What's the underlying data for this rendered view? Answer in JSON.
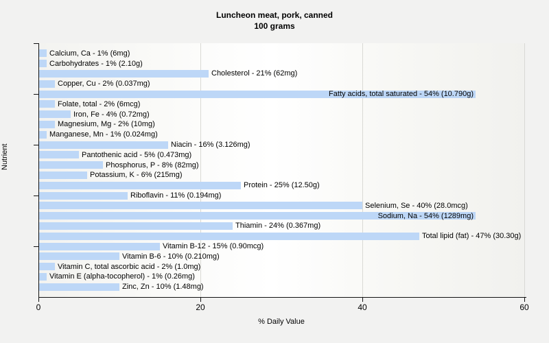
{
  "title": {
    "line1": "Luncheon meat, pork, canned",
    "line2": "100 grams"
  },
  "chart_data": {
    "type": "bar",
    "orientation": "horizontal",
    "title": "Luncheon meat, pork, canned",
    "subtitle": "100 grams",
    "xlabel": "% Daily Value",
    "ylabel": "Nutrient",
    "xlim": [
      0,
      60
    ],
    "xticks": [
      0,
      20,
      40,
      60
    ],
    "grid": "vertical gridlines at 20, 40, 60",
    "legend": "none",
    "bar_color": "#bdd7f7",
    "categories": [
      "Calcium, Ca",
      "Carbohydrates",
      "Cholesterol",
      "Copper, Cu",
      "Fatty acids, total saturated",
      "Folate, total",
      "Iron, Fe",
      "Magnesium, Mg",
      "Manganese, Mn",
      "Niacin",
      "Pantothenic acid",
      "Phosphorus, P",
      "Potassium, K",
      "Protein",
      "Riboflavin",
      "Selenium, Se",
      "Sodium, Na",
      "Thiamin",
      "Total lipid (fat)",
      "Vitamin B-12",
      "Vitamin B-6",
      "Vitamin C, total ascorbic acid",
      "Vitamin E (alpha-tocopherol)",
      "Zinc, Zn"
    ],
    "values": [
      1,
      1,
      21,
      2,
      54,
      2,
      4,
      2,
      1,
      16,
      5,
      8,
      6,
      25,
      11,
      40,
      54,
      24,
      47,
      15,
      10,
      2,
      1,
      10
    ],
    "amounts": [
      "6mg",
      "2.10g",
      "62mg",
      "0.037mg",
      "10.790g",
      "6mcg",
      "0.72mg",
      "10mg",
      "0.024mg",
      "3.126mg",
      "0.473mg",
      "82mg",
      "215mg",
      "12.50g",
      "0.194mg",
      "28.0mcg",
      "1289mg",
      "0.367mg",
      "30.30g",
      "0.90mcg",
      "0.210mg",
      "1.0mg",
      "0.26mg",
      "1.48mg"
    ],
    "bars": [
      {
        "text": "Calcium, Ca - 1% (6mg)",
        "pct": 1
      },
      {
        "text": "Carbohydrates - 1% (2.10g)",
        "pct": 1
      },
      {
        "text": "Cholesterol - 21% (62mg)",
        "pct": 21
      },
      {
        "text": "Copper, Cu - 2% (0.037mg)",
        "pct": 2
      },
      {
        "text": "Fatty acids, total saturated - 54% (10.790g)",
        "pct": 54
      },
      {
        "text": "Folate, total - 2% (6mcg)",
        "pct": 2
      },
      {
        "text": "Iron, Fe - 4% (0.72mg)",
        "pct": 4
      },
      {
        "text": "Magnesium, Mg - 2% (10mg)",
        "pct": 2
      },
      {
        "text": "Manganese, Mn - 1% (0.024mg)",
        "pct": 1
      },
      {
        "text": "Niacin - 16% (3.126mg)",
        "pct": 16
      },
      {
        "text": "Pantothenic acid - 5% (0.473mg)",
        "pct": 5
      },
      {
        "text": "Phosphorus, P - 8% (82mg)",
        "pct": 8
      },
      {
        "text": "Potassium, K - 6% (215mg)",
        "pct": 6
      },
      {
        "text": "Protein - 25% (12.50g)",
        "pct": 25
      },
      {
        "text": "Riboflavin - 11% (0.194mg)",
        "pct": 11
      },
      {
        "text": "Selenium, Se - 40% (28.0mcg)",
        "pct": 40
      },
      {
        "text": "Sodium, Na - 54% (1289mg)",
        "pct": 54
      },
      {
        "text": "Thiamin - 24% (0.367mg)",
        "pct": 24
      },
      {
        "text": "Total lipid (fat) - 47% (30.30g)",
        "pct": 47
      },
      {
        "text": "Vitamin B-12 - 15% (0.90mcg)",
        "pct": 15
      },
      {
        "text": "Vitamin B-6 - 10% (0.210mg)",
        "pct": 10
      },
      {
        "text": "Vitamin C, total ascorbic acid - 2% (1.0mg)",
        "pct": 2
      },
      {
        "text": "Vitamin E (alpha-tocopherol) - 1% (0.26mg)",
        "pct": 1
      },
      {
        "text": "Zinc, Zn - 10% (1.48mg)",
        "pct": 10
      }
    ]
  }
}
